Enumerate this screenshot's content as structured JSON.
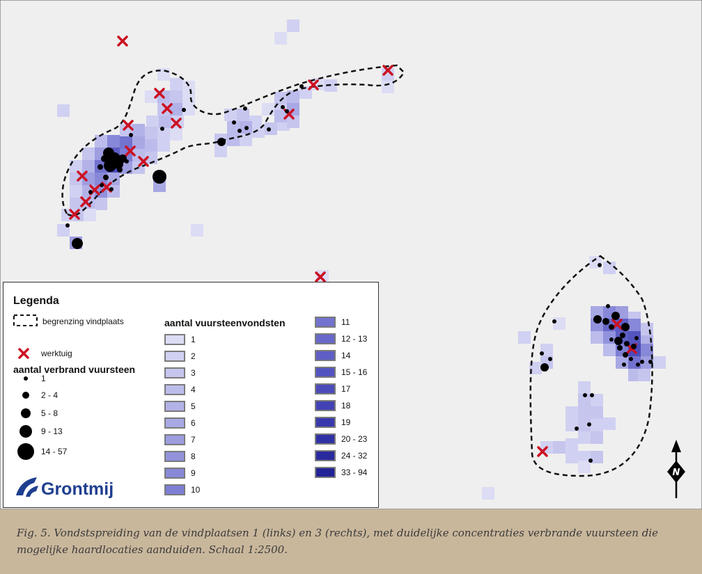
{
  "legend": {
    "title": "Legenda",
    "boundary_label": "begrenzing vindplaats",
    "tool_label": "werktuig",
    "burnt_heading": "aantal verbrand vuursteen",
    "burnt_classes": [
      "1",
      "2 - 4",
      "5 - 8",
      "9 - 13",
      "14 - 57"
    ],
    "flint_heading": "aantal vuursteenvondsten",
    "flint_classes_col1": [
      "1",
      "2",
      "3",
      "4",
      "5",
      "6",
      "7",
      "8",
      "9",
      "10"
    ],
    "flint_classes_col2": [
      "11",
      "12 - 13",
      "14",
      "15 - 16",
      "17",
      "18",
      "19",
      "20 - 23",
      "24 - 32",
      "33 - 94"
    ]
  },
  "logo": {
    "text": "Grontmij",
    "color": "#1f3f8f"
  },
  "north_label": "N",
  "caption": "Fig. 5. Vondstspreiding van de vindplaatsen 1 (links) en 3 (rechts), met duidelijke concentraties verbrande vuursteen die mogelijke haardlocaties aanduiden. Schaal 1:2500.",
  "colors": {
    "map_bg": "#efefef",
    "tool_marker": "#cc1122",
    "caption_bg": "#c9b79c",
    "flint_ramp": [
      "#dcdcf5",
      "#d0d0f2",
      "#c5c5ee",
      "#bcbcec",
      "#b2b2e8",
      "#a8a8e4",
      "#9d9de0",
      "#9292dc",
      "#8888d8",
      "#7e7ed4",
      "#7272cf",
      "#6868ca",
      "#5e5ec5",
      "#5454c0",
      "#4b4bba",
      "#4242b4",
      "#3939ad",
      "#3131a6",
      "#2a2a9f",
      "#232398"
    ]
  }
}
